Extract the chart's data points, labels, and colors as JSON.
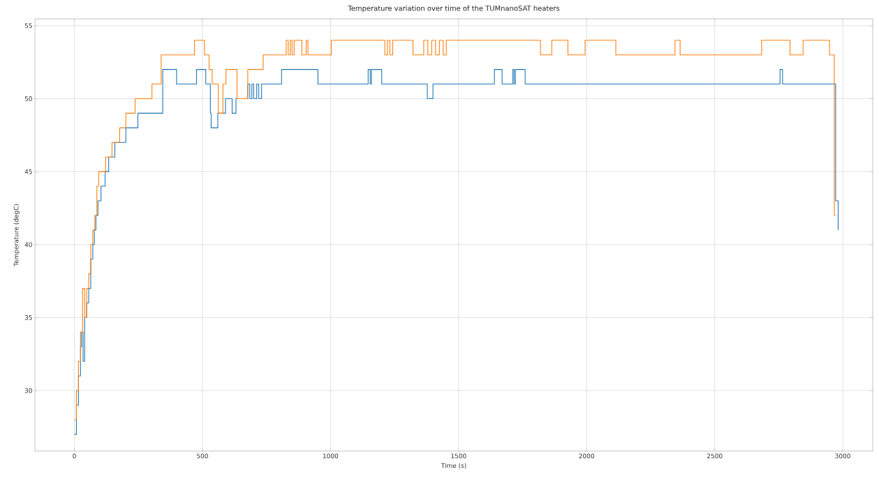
{
  "chart_data": {
    "type": "step",
    "title": "Temperature variation over time of the TUMnanoSAT heaters",
    "xlabel": "Time (s)",
    "ylabel": "Temperature (degC)",
    "xlim": [
      -154,
      3117
    ],
    "ylim": [
      25.85,
      55.47
    ],
    "xticks": [
      0,
      500,
      1000,
      1500,
      2000,
      2500,
      3000
    ],
    "yticks": [
      30,
      35,
      40,
      45,
      50,
      55
    ],
    "grid": true,
    "line_style": "solid",
    "series": [
      {
        "color": "#1f77b4",
        "x": [
          0,
          8,
          16,
          24,
          28,
          34,
          40,
          48,
          56,
          64,
          72,
          78,
          84,
          92,
          104,
          120,
          134,
          158,
          201,
          248,
          345,
          399,
          477,
          513,
          531,
          534,
          560,
          566,
          590,
          616,
          631,
          677,
          685,
          693,
          700,
          712,
          720,
          731,
          809,
          951,
          1147,
          1155,
          1160,
          1200,
          1378,
          1400,
          1640,
          1670,
          1712,
          1717,
          1722,
          1760,
          2755,
          2765,
          2967,
          2972,
          2982
        ],
        "values": [
          27,
          29,
          31,
          33,
          34,
          32,
          35,
          36,
          37,
          39,
          40,
          41,
          42,
          43,
          44,
          45,
          46,
          47,
          48,
          49,
          52,
          51,
          52,
          51,
          49,
          48,
          49,
          49,
          50,
          49,
          50,
          51,
          50,
          51,
          50,
          51,
          50,
          51,
          52,
          51,
          52,
          51,
          52,
          51,
          50,
          51,
          52,
          51,
          52,
          51,
          52,
          51,
          52,
          51,
          51,
          43,
          41
        ]
      },
      {
        "color": "#ff7f0e",
        "x": [
          0,
          8,
          16,
          24,
          32,
          40,
          48,
          56,
          64,
          72,
          80,
          88,
          95,
          122,
          147,
          177,
          201,
          237,
          303,
          339,
          469,
          508,
          526,
          538,
          562,
          580,
          592,
          635,
          677,
          737,
          827,
          835,
          843,
          850,
          858,
          888,
          905,
          912,
          1003,
          1212,
          1222,
          1232,
          1243,
          1322,
          1364,
          1380,
          1395,
          1410,
          1425,
          1440,
          1452,
          1820,
          1864,
          1927,
          1935,
          1994,
          2114,
          2345,
          2365,
          2683,
          2794,
          2845,
          2948,
          2967,
          2972
        ],
        "values": [
          28,
          30,
          32,
          34,
          37,
          35,
          37,
          38,
          40,
          41,
          42,
          44,
          45,
          46,
          47,
          48,
          49,
          50,
          51,
          53,
          54,
          53,
          52,
          51,
          49,
          51,
          52,
          50,
          52,
          53,
          54,
          53,
          54,
          53,
          54,
          53,
          54,
          53,
          54,
          53,
          54,
          53,
          54,
          53,
          54,
          53,
          54,
          53,
          54,
          53,
          54,
          53,
          54,
          53,
          53,
          54,
          53,
          54,
          53,
          54,
          53,
          54,
          53,
          42,
          42
        ]
      }
    ]
  }
}
